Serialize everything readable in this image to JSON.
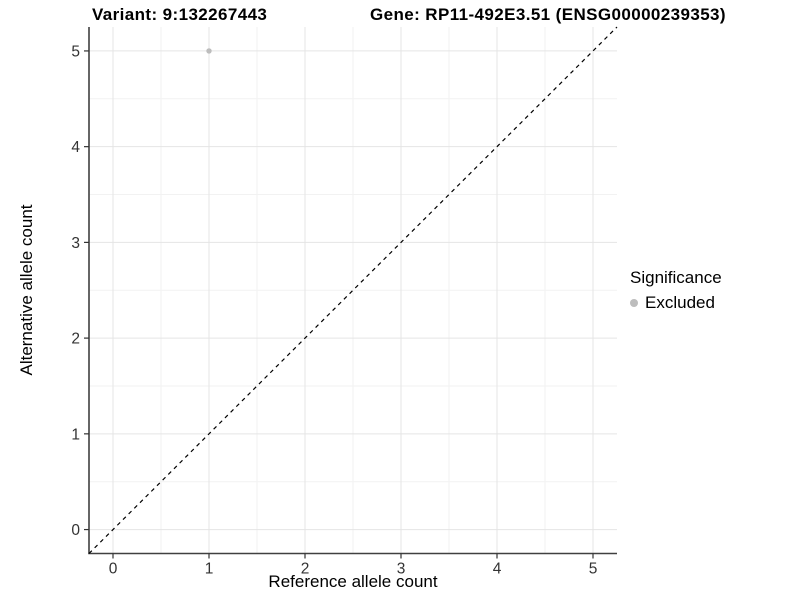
{
  "chart_data": {
    "type": "scatter",
    "title_left": "Variant: 9:132267443",
    "title_right": "Gene: RP11-492E3.51 (ENSG00000239353)",
    "xlabel": "Reference allele count",
    "ylabel": "Alternative allele count",
    "xlim": [
      -0.25,
      5.25
    ],
    "ylim": [
      -0.25,
      5.25
    ],
    "xticks": [
      0,
      1,
      2,
      3,
      4,
      5
    ],
    "yticks": [
      0,
      1,
      2,
      3,
      4,
      5
    ],
    "minor_grid_step": 0.5,
    "grid": "major+minor",
    "background_color": "#ffffff",
    "major_grid_color": "#e5e5e5",
    "minor_grid_color": "#f2f2f2",
    "axis_line_color": "#404040",
    "tick_label_color": "#333333",
    "reference_line": {
      "style": "dashed",
      "color": "#000000",
      "slope": 1,
      "intercept": 0,
      "from": {
        "x": -0.25,
        "y": -0.25
      },
      "to": {
        "x": 5.25,
        "y": 5.25
      }
    },
    "legend": {
      "title": "Significance",
      "position": "right",
      "items": [
        {
          "label": "Excluded",
          "color": "#bdbdbd",
          "marker": "circle"
        }
      ]
    },
    "series": [
      {
        "name": "Excluded",
        "color": "#bdbdbd",
        "points": [
          {
            "x": 1,
            "y": 5
          }
        ]
      }
    ]
  }
}
